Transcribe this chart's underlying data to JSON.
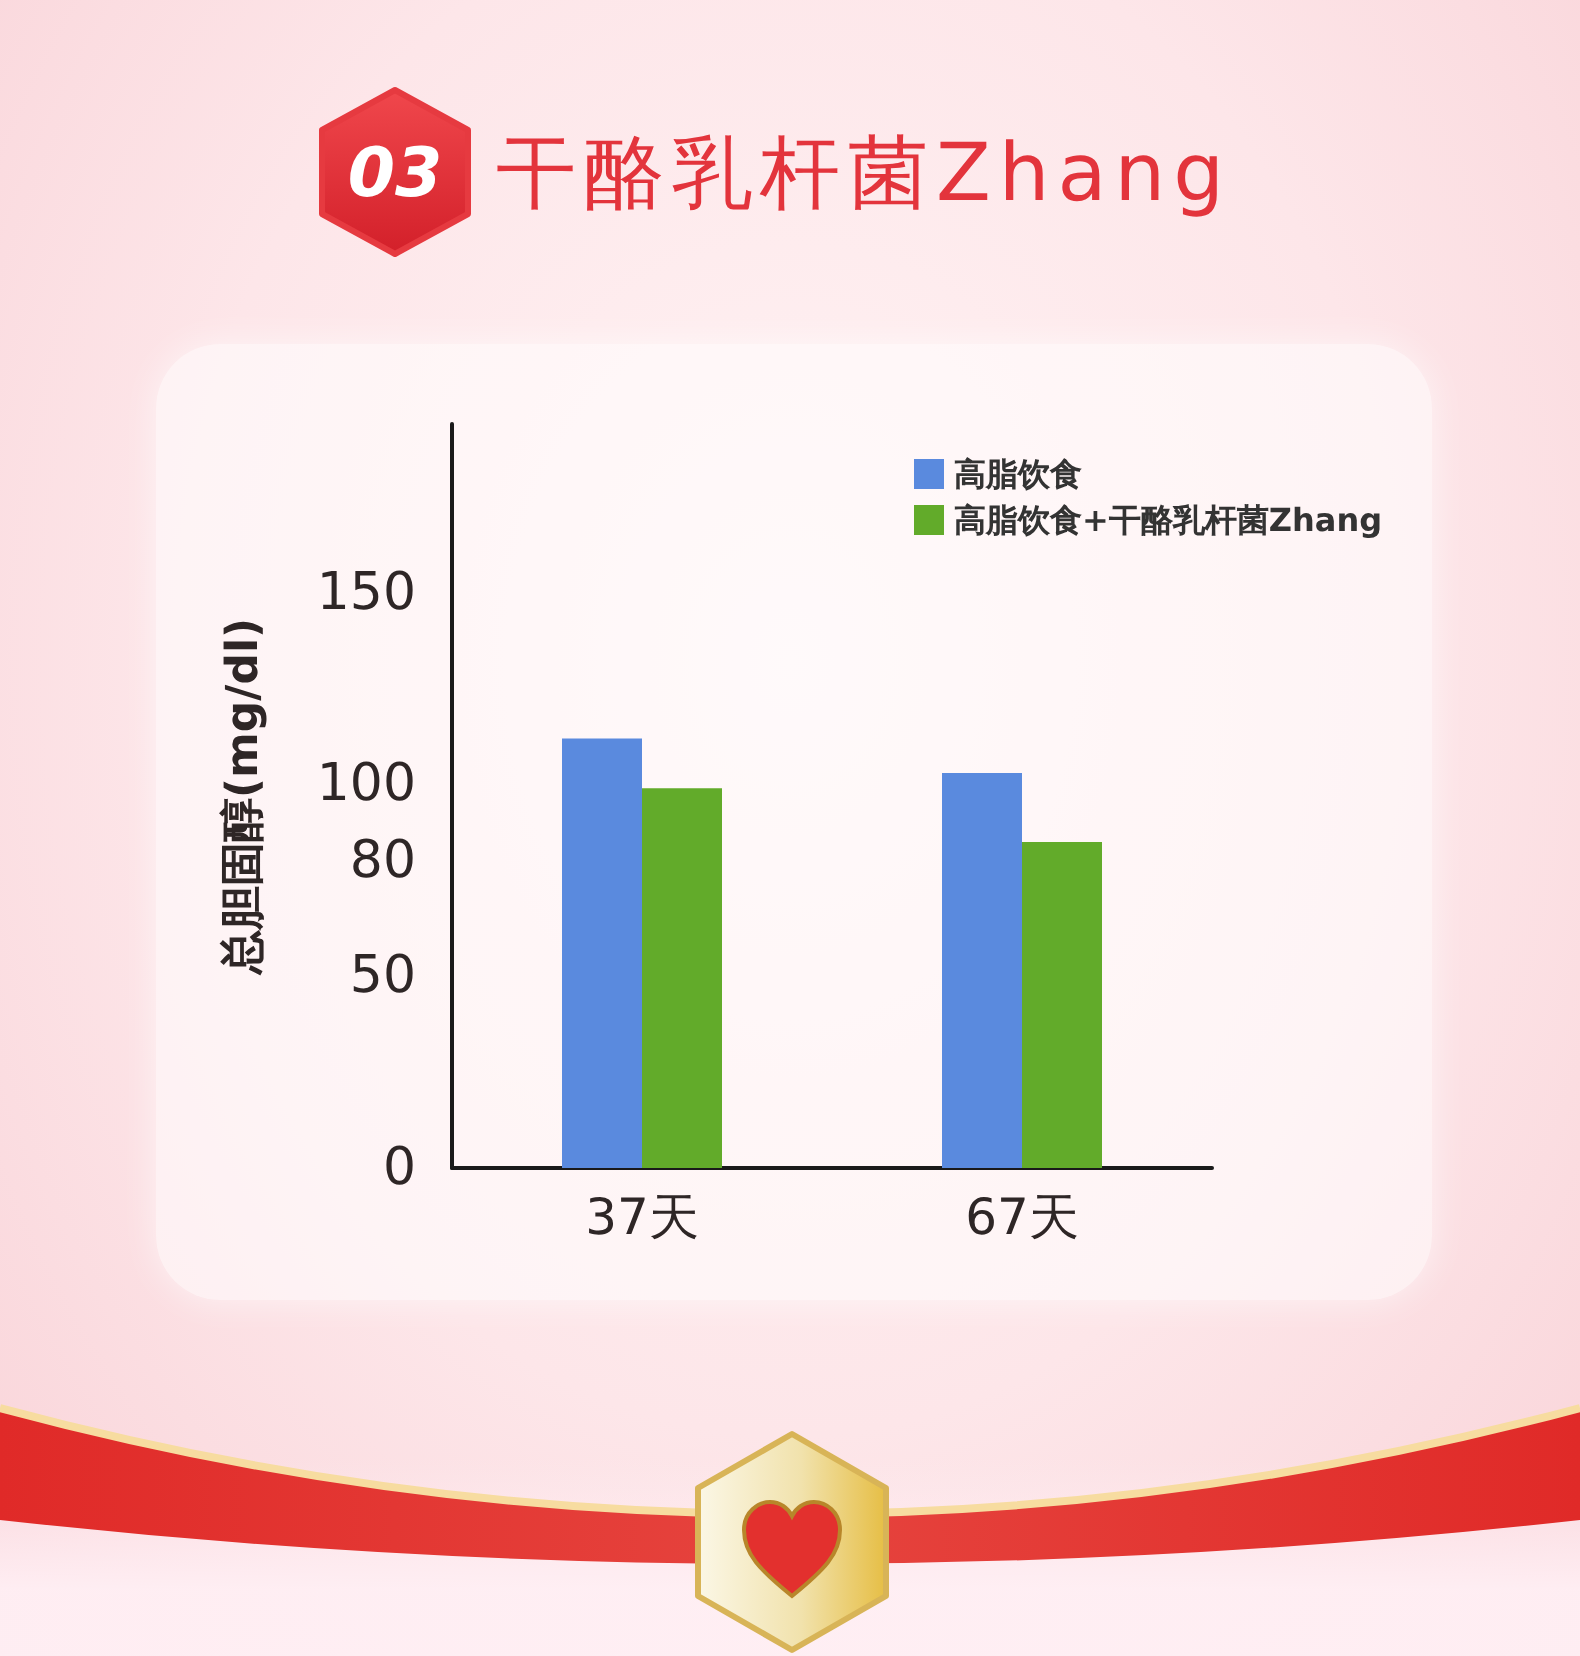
{
  "chart_data": {
    "type": "bar",
    "title": "干酪乳杆菌Zhang",
    "ylabel": "总胆固醇(mg/dl)",
    "annotations": [
      "03"
    ],
    "categories": [
      "37天",
      "67天"
    ],
    "series": [
      {
        "name": "高脂饮食",
        "color": "#5a8ade",
        "values": [
          112,
          103
        ]
      },
      {
        "name": "高脂饮食+干酪乳杆菌Zhang",
        "color": "#62ab2a",
        "values": [
          99,
          85
        ]
      }
    ],
    "ylim": [
      0,
      194
    ],
    "yticks": [
      0,
      50,
      80,
      100,
      150
    ],
    "legend": "top right"
  }
}
